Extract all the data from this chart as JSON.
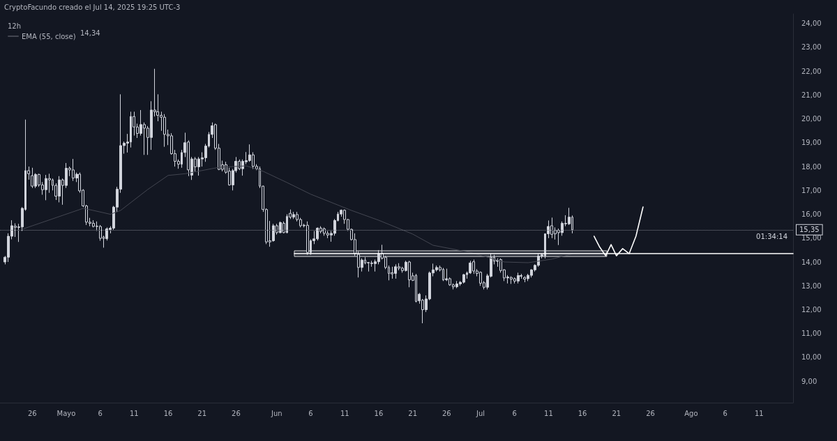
{
  "chart_data": {
    "type": "candlestick",
    "title": "12h",
    "color": "#d1d4dc",
    "annotations": [
      "CryptoFacundo creado el Jul 14, 2025 19:25 UTC-3",
      "14,34",
      "01:34:14"
    ],
    "legend": "top left",
    "marker": "none",
    "xlim": [
      "2025-04-21T06:00",
      "2025-08-16T00:00"
    ],
    "xticks": [
      {
        "value": "2025-04-26",
        "label": "26"
      },
      {
        "value": "2025-05-01",
        "label": "Mayo"
      },
      {
        "value": "2025-05-06",
        "label": "6"
      },
      {
        "value": "2025-05-11",
        "label": "11"
      },
      {
        "value": "2025-05-16",
        "label": "16"
      },
      {
        "value": "2025-05-21",
        "label": "21"
      },
      {
        "value": "2025-05-26",
        "label": "26"
      },
      {
        "value": "2025-06-01",
        "label": "Jun"
      },
      {
        "value": "2025-06-06",
        "label": "6"
      },
      {
        "value": "2025-06-11",
        "label": "11"
      },
      {
        "value": "2025-06-16",
        "label": "16"
      },
      {
        "value": "2025-06-21",
        "label": "21"
      },
      {
        "value": "2025-06-26",
        "label": "26"
      },
      {
        "value": "2025-07-01",
        "label": "Jul"
      },
      {
        "value": "2025-07-06",
        "label": "6"
      },
      {
        "value": "2025-07-11",
        "label": "11"
      },
      {
        "value": "2025-07-16",
        "label": "16"
      },
      {
        "value": "2025-07-21",
        "label": "21"
      },
      {
        "value": "2025-07-26",
        "label": "26"
      },
      {
        "value": "2025-08-01",
        "label": "Ago"
      },
      {
        "value": "2025-08-06",
        "label": "6"
      },
      {
        "value": "2025-08-11",
        "label": "11"
      }
    ],
    "ylim": [
      8.1,
      24.4
    ],
    "yticks": [
      {
        "value": 9,
        "label": "9,00"
      },
      {
        "value": 10,
        "label": "10,00"
      },
      {
        "value": 11,
        "label": "11,00"
      },
      {
        "value": 12,
        "label": "12,00"
      },
      {
        "value": 13,
        "label": "13,00"
      },
      {
        "value": 14,
        "label": "14,00"
      },
      {
        "value": 15,
        "label": "15,00"
      },
      {
        "value": 16,
        "label": "16,00"
      },
      {
        "value": 17,
        "label": "17,00"
      },
      {
        "value": 18,
        "label": "18,00"
      },
      {
        "value": 19,
        "label": "19,00"
      },
      {
        "value": 20,
        "label": "20,00"
      },
      {
        "value": 21,
        "label": "21,00"
      },
      {
        "value": 22,
        "label": "22,00"
      },
      {
        "value": 23,
        "label": "23,00"
      },
      {
        "value": 24,
        "label": "24,00"
      }
    ],
    "ref_lines": [
      {
        "axis": "y",
        "value": 15.35,
        "label": "15,35",
        "color": "#787b86",
        "line_style": "dotted"
      }
    ],
    "x": [
      "2025-04-22T00:00",
      "2025-04-22T12:00",
      "2025-04-23T00:00",
      "2025-04-23T12:00",
      "2025-04-24T00:00",
      "2025-04-24T12:00",
      "2025-04-25T00:00",
      "2025-04-25T12:00",
      "2025-04-26T00:00",
      "2025-04-26T12:00",
      "2025-04-27T00:00",
      "2025-04-27T12:00",
      "2025-04-28T00:00",
      "2025-04-28T12:00",
      "2025-04-29T00:00",
      "2025-04-29T12:00",
      "2025-04-30T00:00",
      "2025-04-30T12:00",
      "2025-05-01T00:00",
      "2025-05-01T12:00",
      "2025-05-02T00:00",
      "2025-05-02T12:00",
      "2025-05-03T00:00",
      "2025-05-03T12:00",
      "2025-05-04T00:00",
      "2025-05-04T12:00",
      "2025-05-05T00:00",
      "2025-05-05T12:00",
      "2025-05-06T00:00",
      "2025-05-06T12:00",
      "2025-05-07T00:00",
      "2025-05-07T12:00",
      "2025-05-08T00:00",
      "2025-05-08T12:00",
      "2025-05-09T00:00",
      "2025-05-09T12:00",
      "2025-05-10T00:00",
      "2025-05-10T12:00",
      "2025-05-11T00:00",
      "2025-05-11T12:00",
      "2025-05-12T00:00",
      "2025-05-12T12:00",
      "2025-05-13T00:00",
      "2025-05-13T12:00",
      "2025-05-14T00:00",
      "2025-05-14T12:00",
      "2025-05-15T00:00",
      "2025-05-15T12:00",
      "2025-05-16T00:00",
      "2025-05-16T12:00",
      "2025-05-17T00:00",
      "2025-05-17T12:00",
      "2025-05-18T00:00",
      "2025-05-18T12:00",
      "2025-05-19T00:00",
      "2025-05-19T12:00",
      "2025-05-20T00:00",
      "2025-05-20T12:00",
      "2025-05-21T00:00",
      "2025-05-21T12:00",
      "2025-05-22T00:00",
      "2025-05-22T12:00",
      "2025-05-23T00:00",
      "2025-05-23T12:00",
      "2025-05-24T00:00",
      "2025-05-24T12:00",
      "2025-05-25T00:00",
      "2025-05-25T12:00",
      "2025-05-26T00:00",
      "2025-05-26T12:00",
      "2025-05-27T00:00",
      "2025-05-27T12:00",
      "2025-05-28T00:00",
      "2025-05-28T12:00",
      "2025-05-29T00:00",
      "2025-05-29T12:00",
      "2025-05-30T00:00",
      "2025-05-30T12:00",
      "2025-05-31T00:00",
      "2025-05-31T12:00",
      "2025-06-01T00:00",
      "2025-06-01T12:00",
      "2025-06-02T00:00",
      "2025-06-02T12:00",
      "2025-06-03T00:00",
      "2025-06-03T12:00",
      "2025-06-04T00:00",
      "2025-06-04T12:00",
      "2025-06-05T00:00",
      "2025-06-05T12:00",
      "2025-06-06T00:00",
      "2025-06-06T12:00",
      "2025-06-07T00:00",
      "2025-06-07T12:00",
      "2025-06-08T00:00",
      "2025-06-08T12:00",
      "2025-06-09T00:00",
      "2025-06-09T12:00",
      "2025-06-10T00:00",
      "2025-06-10T12:00",
      "2025-06-11T00:00",
      "2025-06-11T12:00",
      "2025-06-12T00:00",
      "2025-06-12T12:00",
      "2025-06-13T00:00",
      "2025-06-13T12:00",
      "2025-06-14T00:00",
      "2025-06-14T12:00",
      "2025-06-15T00:00",
      "2025-06-15T12:00",
      "2025-06-16T00:00",
      "2025-06-16T12:00",
      "2025-06-17T00:00",
      "2025-06-17T12:00",
      "2025-06-18T00:00",
      "2025-06-18T12:00",
      "2025-06-19T00:00",
      "2025-06-19T12:00",
      "2025-06-20T00:00",
      "2025-06-20T12:00",
      "2025-06-21T00:00",
      "2025-06-21T12:00",
      "2025-06-22T00:00",
      "2025-06-22T12:00",
      "2025-06-23T00:00",
      "2025-06-23T12:00",
      "2025-06-24T00:00",
      "2025-06-24T12:00",
      "2025-06-25T00:00",
      "2025-06-25T12:00",
      "2025-06-26T00:00",
      "2025-06-26T12:00",
      "2025-06-27T00:00",
      "2025-06-27T12:00",
      "2025-06-28T00:00",
      "2025-06-28T12:00",
      "2025-06-29T00:00",
      "2025-06-29T12:00",
      "2025-06-30T00:00",
      "2025-06-30T12:00",
      "2025-07-01T00:00",
      "2025-07-01T12:00",
      "2025-07-02T00:00",
      "2025-07-02T12:00",
      "2025-07-03T00:00",
      "2025-07-03T12:00",
      "2025-07-04T00:00",
      "2025-07-04T12:00",
      "2025-07-05T00:00",
      "2025-07-05T12:00",
      "2025-07-06T00:00",
      "2025-07-06T12:00",
      "2025-07-07T00:00",
      "2025-07-07T12:00",
      "2025-07-08T00:00",
      "2025-07-08T12:00",
      "2025-07-09T00:00",
      "2025-07-09T12:00",
      "2025-07-10T00:00",
      "2025-07-10T12:00",
      "2025-07-11T00:00",
      "2025-07-11T12:00",
      "2025-07-12T00:00",
      "2025-07-12T12:00",
      "2025-07-13T00:00",
      "2025-07-13T12:00",
      "2025-07-14T00:00",
      "2025-07-14T12:00"
    ],
    "ohlc": [
      [
        14.0,
        14.25,
        13.9,
        14.2
      ],
      [
        14.2,
        15.2,
        14.0,
        15.08
      ],
      [
        15.08,
        15.75,
        14.95,
        15.52
      ],
      [
        15.5,
        15.62,
        15.05,
        15.45
      ],
      [
        15.45,
        15.6,
        14.84,
        15.47
      ],
      [
        15.47,
        16.3,
        15.3,
        16.25
      ],
      [
        16.2,
        19.97,
        16.15,
        17.83
      ],
      [
        17.83,
        18.0,
        17.45,
        17.7
      ],
      [
        17.62,
        17.95,
        17.1,
        17.18
      ],
      [
        17.18,
        17.72,
        17.1,
        17.67
      ],
      [
        17.67,
        17.7,
        17.15,
        17.23
      ],
      [
        17.23,
        17.35,
        16.82,
        17.03
      ],
      [
        17.03,
        17.65,
        16.59,
        17.5
      ],
      [
        17.5,
        17.7,
        16.9,
        17.44
      ],
      [
        17.44,
        17.5,
        17.0,
        17.21
      ],
      [
        17.21,
        17.3,
        16.6,
        16.76
      ],
      [
        16.76,
        17.6,
        16.5,
        17.44
      ],
      [
        17.44,
        17.5,
        16.4,
        17.21
      ],
      [
        17.21,
        18.15,
        17.1,
        17.93
      ],
      [
        17.93,
        18.0,
        17.6,
        17.86
      ],
      [
        17.86,
        18.32,
        17.4,
        17.52
      ],
      [
        17.52,
        17.75,
        17.35,
        17.68
      ],
      [
        17.68,
        17.75,
        16.9,
        16.98
      ],
      [
        17.01,
        17.05,
        16.3,
        16.35
      ],
      [
        16.35,
        16.4,
        15.55,
        15.67
      ],
      [
        15.67,
        15.85,
        15.5,
        15.62
      ],
      [
        15.62,
        15.75,
        15.45,
        15.49
      ],
      [
        15.49,
        15.7,
        15.3,
        15.5
      ],
      [
        15.49,
        15.55,
        14.89,
        14.99
      ],
      [
        15.05,
        15.1,
        14.6,
        14.98
      ],
      [
        14.98,
        15.45,
        14.9,
        15.39
      ],
      [
        15.36,
        15.5,
        15.2,
        15.42
      ],
      [
        15.42,
        16.35,
        15.35,
        16.3
      ],
      [
        16.3,
        17.15,
        16.1,
        17.05
      ],
      [
        17.05,
        21.03,
        16.9,
        18.88
      ],
      [
        18.88,
        19.05,
        18.54,
        18.98
      ],
      [
        18.98,
        19.37,
        18.59,
        19.03
      ],
      [
        19.03,
        20.3,
        18.8,
        20.1
      ],
      [
        20.1,
        20.3,
        19.3,
        19.66
      ],
      [
        19.66,
        19.8,
        19.2,
        19.39
      ],
      [
        19.39,
        20.37,
        19.3,
        19.76
      ],
      [
        19.76,
        19.85,
        18.49,
        19.61
      ],
      [
        19.61,
        19.7,
        18.49,
        19.22
      ],
      [
        19.22,
        20.74,
        18.7,
        20.37
      ],
      [
        20.37,
        22.1,
        20.1,
        20.3
      ],
      [
        20.3,
        21.03,
        19.9,
        20.15
      ],
      [
        20.15,
        20.3,
        19.5,
        20.07
      ],
      [
        20.07,
        20.2,
        18.83,
        19.35
      ],
      [
        19.35,
        19.55,
        18.9,
        19.29
      ],
      [
        19.29,
        19.4,
        18.5,
        18.54
      ],
      [
        18.54,
        18.7,
        18.0,
        18.22
      ],
      [
        18.22,
        18.3,
        17.91,
        18.1
      ],
      [
        18.1,
        18.7,
        17.95,
        18.59
      ],
      [
        18.59,
        19.42,
        18.4,
        19.0
      ],
      [
        19.03,
        19.1,
        17.6,
        17.86
      ],
      [
        17.64,
        18.4,
        17.44,
        18.32
      ],
      [
        18.32,
        18.4,
        17.8,
        17.99
      ],
      [
        17.99,
        18.4,
        17.62,
        18.32
      ],
      [
        18.32,
        18.6,
        18.0,
        18.37
      ],
      [
        18.37,
        18.95,
        18.2,
        18.86
      ],
      [
        18.86,
        19.45,
        18.8,
        19.35
      ],
      [
        19.35,
        19.85,
        19.2,
        19.71
      ],
      [
        19.76,
        19.8,
        18.7,
        18.77
      ],
      [
        18.77,
        18.95,
        17.85,
        17.88
      ],
      [
        18.08,
        18.25,
        17.8,
        17.88
      ],
      [
        18.08,
        18.2,
        17.7,
        17.76
      ],
      [
        17.81,
        17.95,
        17.2,
        17.23
      ],
      [
        17.23,
        17.9,
        17.0,
        17.83
      ],
      [
        17.83,
        18.4,
        17.75,
        18.22
      ],
      [
        18.22,
        18.3,
        17.85,
        17.91
      ],
      [
        17.91,
        18.3,
        17.62,
        18.22
      ],
      [
        18.2,
        18.61,
        18.1,
        18.25
      ],
      [
        18.25,
        18.93,
        18.2,
        18.49
      ],
      [
        18.49,
        18.6,
        17.9,
        18.01
      ],
      [
        18.01,
        18.1,
        17.85,
        17.91
      ],
      [
        17.91,
        18.0,
        17.1,
        17.18
      ],
      [
        17.18,
        17.2,
        16.1,
        16.2
      ],
      [
        16.2,
        16.25,
        14.75,
        14.84
      ],
      [
        14.89,
        15.72,
        14.64,
        14.84
      ],
      [
        14.89,
        15.6,
        14.85,
        15.52
      ],
      [
        15.52,
        15.6,
        15.15,
        15.23
      ],
      [
        15.23,
        15.7,
        15.2,
        15.65
      ],
      [
        15.62,
        15.7,
        15.2,
        15.23
      ],
      [
        15.23,
        16.0,
        15.2,
        15.91
      ],
      [
        16.04,
        16.2,
        15.8,
        15.88
      ],
      [
        15.88,
        16.1,
        15.8,
        15.99
      ],
      [
        15.99,
        16.1,
        15.7,
        15.78
      ],
      [
        15.78,
        15.85,
        15.45,
        15.52
      ],
      [
        15.52,
        15.6,
        15.45,
        15.54
      ],
      [
        15.54,
        15.7,
        14.3,
        14.4
      ],
      [
        14.4,
        14.95,
        14.3,
        14.89
      ],
      [
        14.89,
        15.3,
        14.75,
        14.97
      ],
      [
        14.97,
        15.45,
        14.9,
        15.42
      ],
      [
        15.42,
        15.5,
        15.2,
        15.28
      ],
      [
        15.39,
        15.45,
        15.1,
        15.2
      ],
      [
        15.2,
        15.3,
        15.0,
        15.13
      ],
      [
        15.13,
        15.3,
        14.85,
        15.2
      ],
      [
        15.2,
        15.8,
        15.1,
        15.74
      ],
      [
        15.74,
        16.1,
        15.7,
        16.01
      ],
      [
        16.01,
        16.2,
        15.9,
        16.17
      ],
      [
        16.17,
        16.2,
        15.6,
        15.78
      ],
      [
        15.78,
        15.8,
        15.3,
        15.37
      ],
      [
        15.37,
        15.4,
        14.9,
        14.94
      ],
      [
        14.94,
        15.2,
        14.25,
        14.35
      ],
      [
        14.32,
        14.45,
        13.35,
        13.77
      ],
      [
        13.77,
        14.15,
        13.6,
        14.08
      ],
      [
        14.08,
        14.2,
        13.9,
        13.96
      ],
      [
        13.98,
        14.0,
        13.6,
        13.96
      ],
      [
        13.96,
        14.05,
        13.8,
        13.93
      ],
      [
        13.93,
        14.1,
        13.6,
        14.01
      ],
      [
        14.01,
        14.5,
        13.9,
        14.35
      ],
      [
        14.35,
        14.72,
        14.1,
        14.16
      ],
      [
        14.2,
        14.25,
        13.7,
        13.77
      ],
      [
        13.77,
        13.85,
        13.23,
        13.52
      ],
      [
        13.55,
        13.8,
        13.3,
        13.5
      ],
      [
        13.52,
        13.9,
        13.3,
        13.8
      ],
      [
        13.8,
        13.95,
        13.65,
        13.74
      ],
      [
        13.74,
        13.8,
        13.55,
        13.64
      ],
      [
        13.64,
        14.05,
        13.6,
        13.99
      ],
      [
        14.0,
        14.05,
        12.94,
        13.25
      ],
      [
        13.42,
        13.55,
        13.2,
        13.23
      ],
      [
        13.44,
        13.5,
        12.3,
        12.35
      ],
      [
        12.37,
        12.7,
        12.25,
        12.65
      ],
      [
        12.4,
        12.45,
        11.43,
        12.0
      ],
      [
        12.0,
        12.6,
        11.9,
        12.45
      ],
      [
        12.45,
        13.6,
        12.4,
        13.54
      ],
      [
        13.54,
        13.93,
        13.4,
        13.67
      ],
      [
        13.67,
        13.85,
        13.6,
        13.77
      ],
      [
        13.77,
        13.85,
        13.6,
        13.67
      ],
      [
        13.69,
        13.75,
        13.2,
        13.25
      ],
      [
        13.25,
        13.72,
        13.2,
        13.3
      ],
      [
        13.3,
        13.35,
        13.0,
        13.04
      ],
      [
        13.04,
        13.1,
        12.85,
        12.96
      ],
      [
        12.96,
        13.2,
        12.9,
        13.08
      ],
      [
        13.08,
        13.2,
        13.0,
        13.15
      ],
      [
        13.15,
        13.5,
        13.1,
        13.47
      ],
      [
        13.47,
        13.6,
        13.3,
        13.54
      ],
      [
        13.54,
        14.05,
        13.5,
        13.96
      ],
      [
        14.01,
        14.1,
        13.5,
        13.62
      ],
      [
        13.62,
        13.7,
        13.4,
        13.52
      ],
      [
        13.57,
        13.6,
        13.0,
        13.11
      ],
      [
        13.13,
        13.2,
        12.85,
        12.94
      ],
      [
        12.94,
        13.5,
        12.85,
        13.42
      ],
      [
        13.4,
        14.35,
        13.35,
        14.2
      ],
      [
        14.2,
        14.3,
        13.9,
        14.03
      ],
      [
        14.03,
        14.15,
        13.8,
        14.07
      ],
      [
        14.1,
        14.15,
        13.55,
        13.64
      ],
      [
        13.67,
        13.7,
        13.2,
        13.33
      ],
      [
        13.33,
        13.45,
        13.1,
        13.37
      ],
      [
        13.35,
        13.4,
        13.08,
        13.28
      ],
      [
        13.3,
        13.35,
        13.1,
        13.2
      ],
      [
        13.2,
        13.55,
        13.1,
        13.43
      ],
      [
        13.43,
        13.5,
        13.3,
        13.4
      ],
      [
        13.35,
        13.4,
        13.15,
        13.28
      ],
      [
        13.3,
        13.5,
        13.2,
        13.44
      ],
      [
        13.44,
        13.7,
        13.35,
        13.67
      ],
      [
        13.67,
        13.9,
        13.6,
        13.86
      ],
      [
        13.86,
        14.35,
        13.8,
        14.25
      ],
      [
        14.25,
        14.35,
        14.15,
        14.3
      ],
      [
        14.25,
        15.2,
        14.15,
        15.18
      ],
      [
        15.18,
        15.74,
        15.0,
        15.49
      ],
      [
        15.52,
        15.86,
        15.0,
        15.16
      ],
      [
        15.33,
        15.45,
        14.94,
        15.18
      ],
      [
        15.33,
        15.4,
        14.71,
        15.23
      ],
      [
        15.23,
        15.7,
        15.1,
        15.62
      ],
      [
        15.6,
        15.96,
        15.5,
        15.62
      ],
      [
        15.6,
        16.27,
        15.55,
        15.88
      ],
      [
        15.88,
        15.95,
        15.2,
        15.35
      ]
    ],
    "series": [
      {
        "type": "line",
        "name": "EMA (55, close)",
        "color": "#434651",
        "x": [
          "2025-04-24T12:00",
          "2025-05-03T12:00",
          "2025-05-05T00:00",
          "2025-05-07T12:00",
          "2025-05-09T00:00",
          "2025-05-13T00:00",
          "2025-05-16T00:00",
          "2025-05-18T12:00",
          "2025-05-23T12:00",
          "2025-05-27T12:00",
          "2025-05-30T00:00",
          "2025-06-02T12:00",
          "2025-06-06T00:00",
          "2025-06-12T00:00",
          "2025-06-16T00:00",
          "2025-06-21T00:00",
          "2025-06-24T00:00",
          "2025-06-29T12:00",
          "2025-07-04T12:00",
          "2025-07-08T00:00",
          "2025-07-11T12:00",
          "2025-07-14T12:00"
        ],
        "values": [
          15.37,
          16.25,
          16.16,
          16.0,
          16.16,
          17.04,
          17.63,
          17.7,
          17.97,
          18.03,
          17.8,
          17.33,
          16.84,
          16.16,
          15.75,
          15.17,
          14.7,
          14.4,
          14.0,
          13.97,
          14.12,
          14.34
        ]
      },
      {
        "type": "line",
        "color": "#ffffff",
        "x": [
          "2025-07-17T17:00",
          "2025-07-18T13:00",
          "2025-07-19T10:00",
          "2025-07-20T05:00",
          "2025-07-21T00:00",
          "2025-07-21T22:00",
          "2025-07-22T21:00",
          "2025-07-23T21:00",
          "2025-07-24T22:00"
        ],
        "values": [
          15.08,
          14.62,
          14.26,
          14.73,
          14.26,
          14.56,
          14.35,
          15.08,
          16.31
        ]
      },
      {
        "type": "line",
        "color": "#ffffff",
        "x": [
          "2025-06-03T14:00",
          "2025-07-19T14:00",
          "2025-08-16T00:00"
        ],
        "values": [
          14.35,
          14.35,
          14.35
        ],
        "lower": [
          14.23,
          14.23,
          null
        ],
        "upper": [
          14.47,
          14.47,
          null
        ]
      }
    ]
  }
}
